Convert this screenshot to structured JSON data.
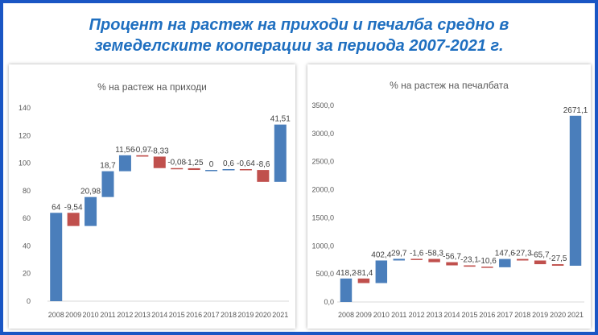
{
  "page": {
    "title_line1": "Процент на растеж на приходи и печалба средно в",
    "title_line2": "земеделските кооперации за периода 2007-2021 г."
  },
  "colors": {
    "increase": "#4a7ebb",
    "decrease": "#c0504d",
    "frame": "#1a56c4",
    "title": "#1f6fc0"
  },
  "chart_data": [
    {
      "type": "bar",
      "subtype": "waterfall",
      "title": "% на растеж на приходи",
      "categories": [
        "2008",
        "2009",
        "2010",
        "2011",
        "2012",
        "2013",
        "2014",
        "2015",
        "2016",
        "2017",
        "2018",
        "2019",
        "2020",
        "2021"
      ],
      "values": [
        64,
        -9.54,
        20.98,
        18.7,
        11.56,
        -0.97,
        -8.33,
        -0.08,
        -1.25,
        0,
        0.6,
        -0.64,
        -8.6,
        41.51
      ],
      "value_labels": [
        "64",
        "-9,54",
        "20,98",
        "18,7",
        "11,56",
        "-0,97",
        "-8,33",
        "-0,08",
        "-1,25",
        "0",
        "0,6",
        "-0,64",
        "-8,6",
        "41,51"
      ],
      "yticks": [
        "0",
        "20",
        "40",
        "60",
        "80",
        "100",
        "120",
        "140"
      ],
      "ylim": [
        0,
        140
      ],
      "grid": false,
      "legend": "none"
    },
    {
      "type": "bar",
      "subtype": "waterfall",
      "title": "% на растеж на печалбата",
      "categories": [
        "2008",
        "2009",
        "2010",
        "2011",
        "2012",
        "2013",
        "2014",
        "2015",
        "2016",
        "2017",
        "2018",
        "2019",
        "2020",
        "2021"
      ],
      "values": [
        418.2,
        -81.4,
        402.4,
        29.7,
        -1.6,
        -58.3,
        -56.7,
        -23.1,
        -10.6,
        147.6,
        -27.3,
        -65.7,
        -27.5,
        2671.1
      ],
      "value_labels": [
        "418,2",
        "-81,4",
        "402,4",
        "29,7",
        "-1,6",
        "-58,3",
        "-56,7",
        "-23,1",
        "-10,6",
        "147,6",
        "-27,3",
        "-65,7",
        "-27,5",
        "2671,1"
      ],
      "yticks": [
        "0,0",
        "500,0",
        "1000,0",
        "1500,0",
        "2000,0",
        "2500,0",
        "3000,0",
        "3500,0"
      ],
      "ylim": [
        0,
        3500
      ],
      "grid": false,
      "legend": "none"
    }
  ]
}
